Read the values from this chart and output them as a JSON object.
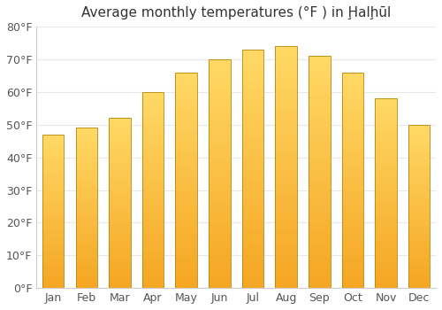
{
  "title": "Average monthly temperatures (°F ) in Ḩalḩūl",
  "months": [
    "Jan",
    "Feb",
    "Mar",
    "Apr",
    "May",
    "Jun",
    "Jul",
    "Aug",
    "Sep",
    "Oct",
    "Nov",
    "Dec"
  ],
  "values": [
    47,
    49,
    52,
    60,
    66,
    70,
    73,
    74,
    71,
    66,
    58,
    50
  ],
  "ylim": [
    0,
    80
  ],
  "yticks": [
    0,
    10,
    20,
    30,
    40,
    50,
    60,
    70,
    80
  ],
  "ytick_labels": [
    "0°F",
    "10°F",
    "20°F",
    "30°F",
    "40°F",
    "50°F",
    "60°F",
    "70°F",
    "80°F"
  ],
  "background_color": "#ffffff",
  "plot_bg_color": "#ffffff",
  "grid_color": "#e8e8e8",
  "bar_color_bottom": "#F5A623",
  "bar_color_top": "#FFD966",
  "bar_edge_color": "#b8860b",
  "title_fontsize": 11,
  "tick_fontsize": 9,
  "bar_width": 0.65,
  "n_gradient_steps": 80
}
